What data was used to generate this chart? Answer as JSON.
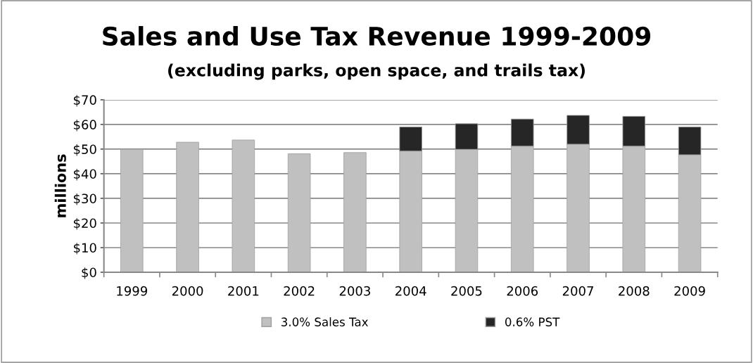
{
  "chart_data": {
    "type": "bar",
    "title": "Sales and Use Tax Revenue 1999-2009",
    "subtitle": "(excluding parks, open space, and trails tax)",
    "ylabel": "millions",
    "categories": [
      "1999",
      "2000",
      "2001",
      "2002",
      "2003",
      "2004",
      "2005",
      "2006",
      "2007",
      "2008",
      "2009"
    ],
    "stacked": true,
    "series": [
      {
        "name": "3.0% Sales Tax",
        "color": "#c0c0c0",
        "values": [
          49.9,
          52.8,
          53.7,
          48.1,
          48.6,
          49.2,
          49.9,
          51.2,
          52.0,
          51.2,
          47.7
        ]
      },
      {
        "name": "0.6% PST",
        "color": "#262626",
        "values": [
          null,
          null,
          null,
          null,
          null,
          9.8,
          10.4,
          11.0,
          11.7,
          12.1,
          11.3
        ]
      }
    ],
    "ylim": [
      0,
      70
    ],
    "yticks": [
      {
        "value": 0,
        "label": "$0"
      },
      {
        "value": 10,
        "label": "$10"
      },
      {
        "value": 20,
        "label": "$20"
      },
      {
        "value": 30,
        "label": "$30"
      },
      {
        "value": 40,
        "label": "$40"
      },
      {
        "value": 50,
        "label": "$50"
      },
      {
        "value": 60,
        "label": "$60"
      },
      {
        "value": 70,
        "label": "$70"
      }
    ],
    "grid": "y",
    "legend": "bottom"
  }
}
